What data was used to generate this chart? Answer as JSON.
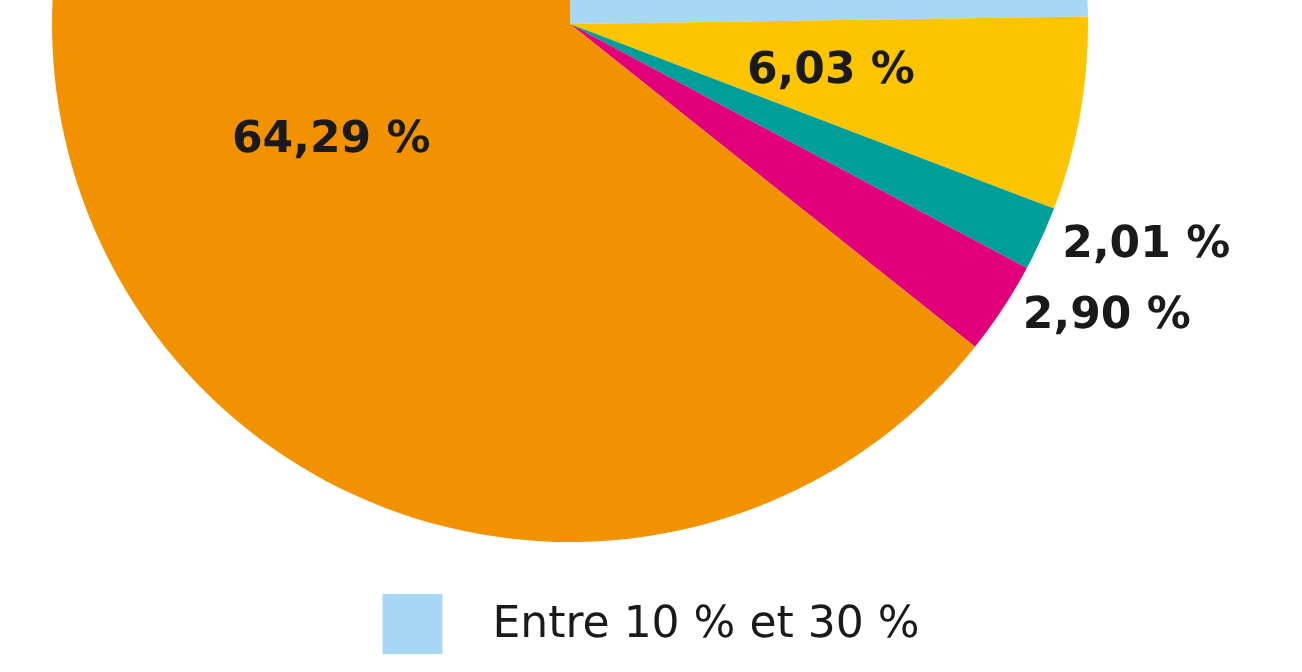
{
  "chart_data": {
    "type": "pie",
    "categories": [
      "Entre 10 % et 30 %",
      null,
      null,
      null,
      null
    ],
    "values": [
      24.77,
      6.03,
      2.01,
      2.9,
      64.29
    ],
    "colors": [
      "#a6d8f5",
      "#fdc400",
      "#009e99",
      "#e2007a",
      "#f39200"
    ],
    "value_labels": [
      null,
      "6,03 %",
      "2,01 %",
      "2,90 %",
      "64,29 %"
    ],
    "legend": "bottom"
  }
}
